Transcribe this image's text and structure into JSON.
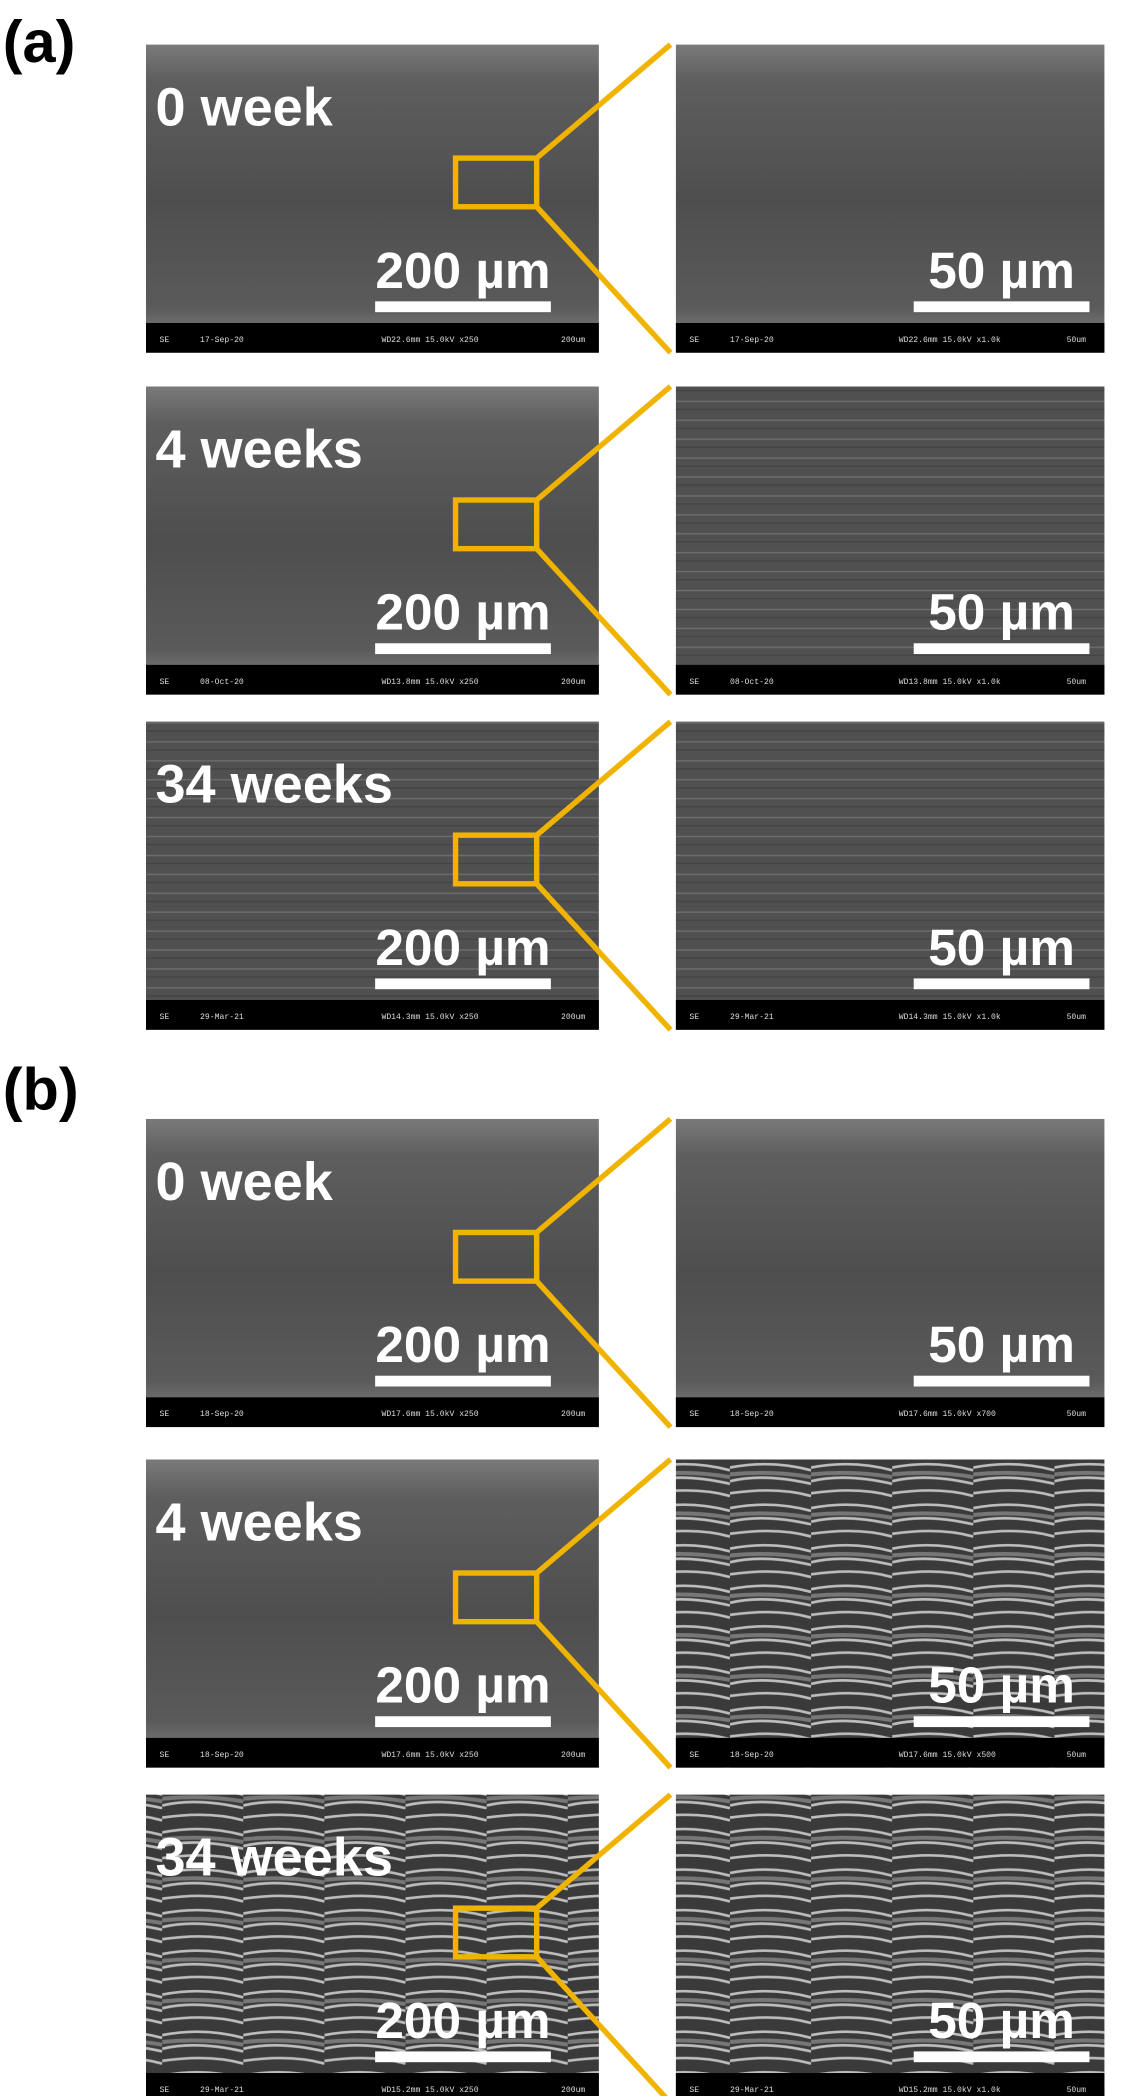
{
  "panels": [
    {
      "label": "(a)",
      "rows": [
        {
          "time": "0 week",
          "left": {
            "scale": "200 µm",
            "footer": [
              "SE",
              "17-Sep-20",
              "WD22.6mm 15.0kV x250",
              "200um"
            ]
          },
          "right": {
            "scale": "50 µm",
            "footer": [
              "SE",
              "17-Sep-20",
              "WD22.6mm 15.0kV x1.0k",
              "50um"
            ]
          }
        },
        {
          "time": "4 weeks",
          "left": {
            "scale": "200 µm",
            "footer": [
              "SE",
              "08-Oct-20",
              "WD13.8mm 15.0kV x250",
              "200um"
            ]
          },
          "right": {
            "scale": "50 µm",
            "footer": [
              "SE",
              "08-Oct-20",
              "WD13.8mm 15.0kV x1.0k",
              "50um"
            ]
          }
        },
        {
          "time": "34 weeks",
          "left": {
            "scale": "200 µm",
            "footer": [
              "SE",
              "29-Mar-21",
              "WD14.3mm 15.0kV x250",
              "200um"
            ]
          },
          "right": {
            "scale": "50 µm",
            "footer": [
              "SE",
              "29-Mar-21",
              "WD14.3mm 15.0kV x1.0k",
              "50um"
            ]
          }
        }
      ]
    },
    {
      "label": "(b)",
      "rows": [
        {
          "time": "0 week",
          "left": {
            "scale": "200 µm",
            "footer": [
              "SE",
              "18-Sep-20",
              "WD17.6mm 15.0kV x250",
              "200um"
            ]
          },
          "right": {
            "scale": "50 µm",
            "footer": [
              "SE",
              "18-Sep-20",
              "WD17.6mm 15.0kV x700",
              "50um"
            ]
          }
        },
        {
          "time": "4 weeks",
          "left": {
            "scale": "200 µm",
            "footer": [
              "SE",
              "18-Sep-20",
              "WD17.6mm 15.0kV x250",
              "200um"
            ]
          },
          "right": {
            "scale": "50 µm",
            "footer": [
              "SE",
              "18-Sep-20",
              "WD17.6mm 15.0kV x500",
              "50um"
            ]
          }
        },
        {
          "time": "34 weeks",
          "left": {
            "scale": "200 µm",
            "footer": [
              "SE",
              "29-Mar-21",
              "WD15.2mm 15.0kV x250",
              "200um"
            ]
          },
          "right": {
            "scale": "50 µm",
            "footer": [
              "SE",
              "29-Mar-21",
              "WD15.2mm 15.0kV x1.0k",
              "50um"
            ]
          }
        }
      ]
    }
  ]
}
